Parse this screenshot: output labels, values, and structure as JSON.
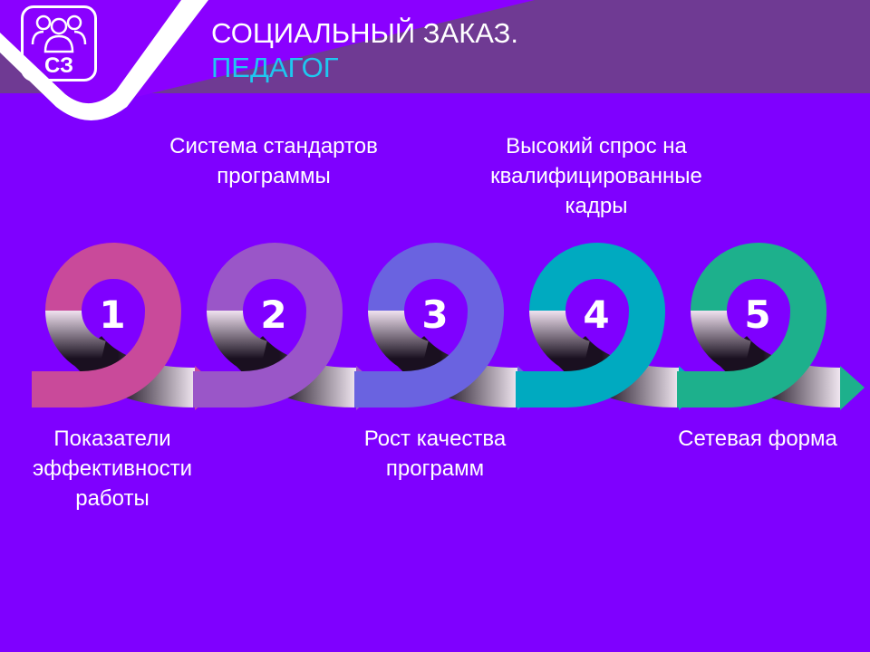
{
  "header": {
    "title_line1": "СОЦИАЛЬНЫЙ ЗАКАЗ.",
    "title_line2": "ПЕДАГОГ"
  },
  "logo": {
    "text": "СЗ",
    "icon": "people-group-icon"
  },
  "steps": [
    {
      "number": "1",
      "label": "Показатели эффективности работы",
      "position": "below",
      "color": "#c94a9a"
    },
    {
      "number": "2",
      "label": "Система стандартов программы",
      "position": "above",
      "color": "#9a56c8"
    },
    {
      "number": "3",
      "label": "Рост качества программ",
      "position": "below",
      "color": "#6a63e0"
    },
    {
      "number": "4",
      "label": "Высокий спрос на квалифицированные кадры",
      "position": "above",
      "color": "#00aac0"
    },
    {
      "number": "5",
      "label": "Сетевая форма",
      "position": "below",
      "color": "#1db08c"
    }
  ]
}
